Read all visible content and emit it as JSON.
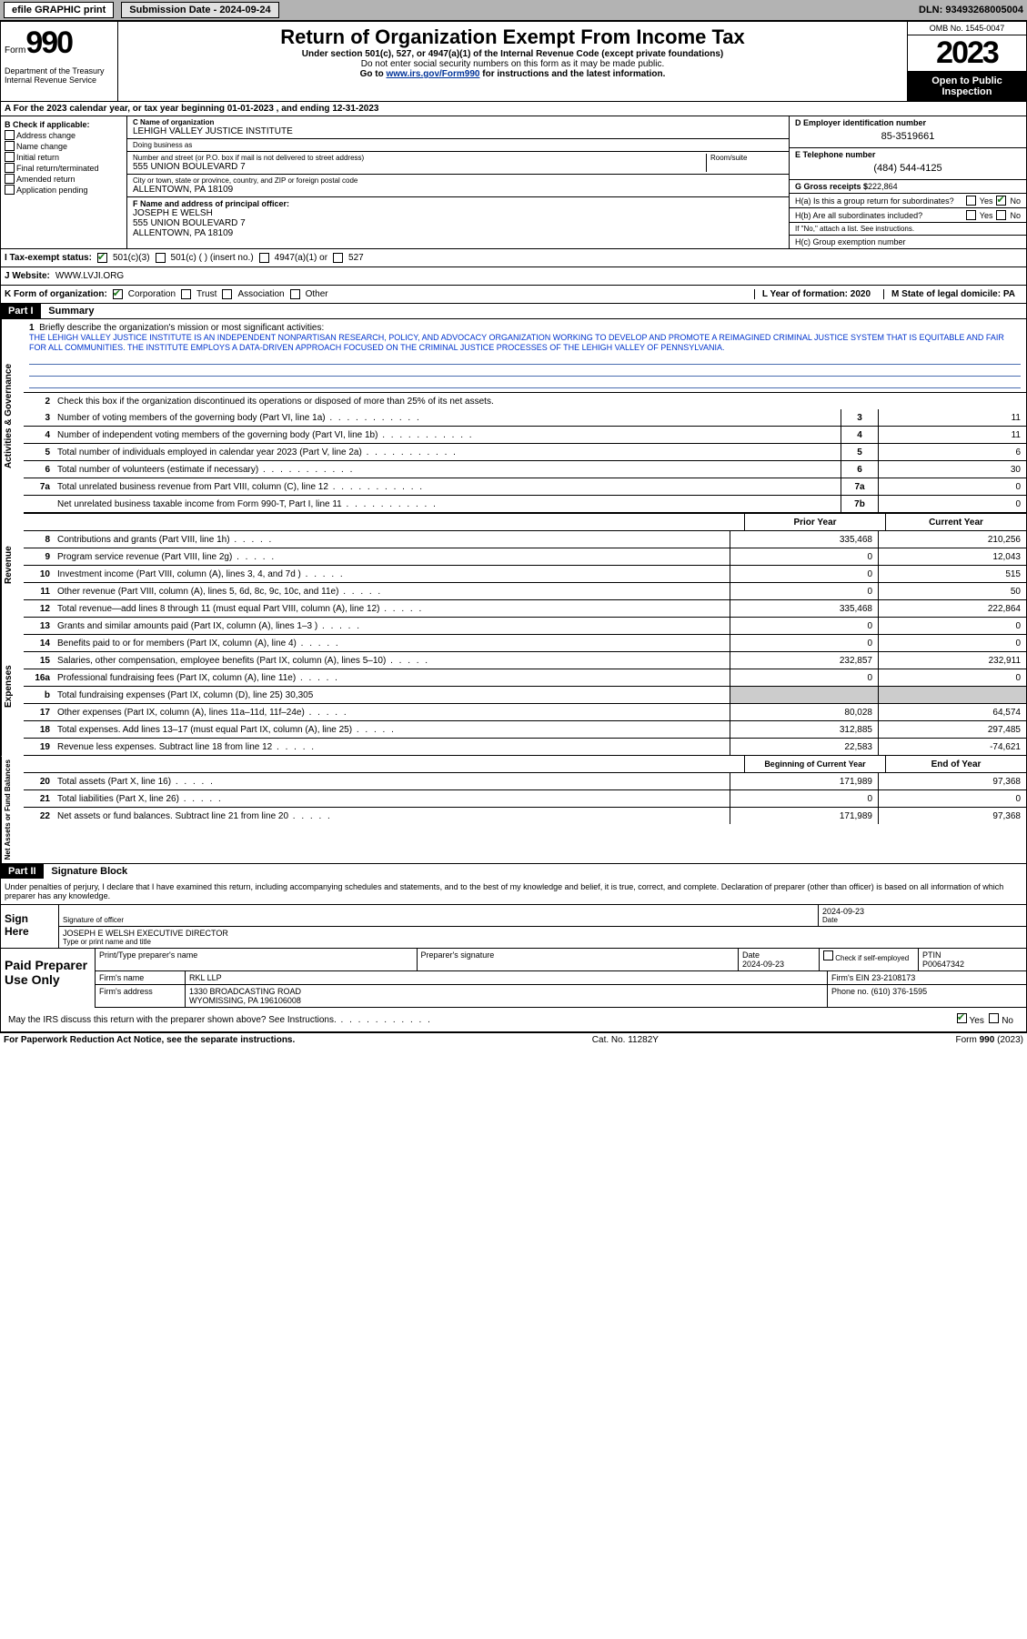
{
  "top_bar": {
    "efile": "efile GRAPHIC print",
    "submission_label": "Submission Date - 2024-09-24",
    "dln_label": "DLN: 93493268005004"
  },
  "header": {
    "form_label": "Form",
    "form_number": "990",
    "main_title": "Return of Organization Exempt From Income Tax",
    "sub1": "Under section 501(c), 527, or 4947(a)(1) of the Internal Revenue Code (except private foundations)",
    "sub2": "Do not enter social security numbers on this form as it may be made public.",
    "sub3_pre": "Go to ",
    "sub3_link": "www.irs.gov/Form990",
    "sub3_post": " for instructions and the latest information.",
    "treasury": "Department of the Treasury\nInternal Revenue Service",
    "omb": "OMB No. 1545-0047",
    "year": "2023",
    "inspection": "Open to Public Inspection"
  },
  "row_a": "A For the 2023 calendar year, or tax year beginning 01-01-2023   , and ending 12-31-2023",
  "section_b": {
    "title": "B Check if applicable:",
    "opts": [
      "Address change",
      "Name change",
      "Initial return",
      "Final return/terminated",
      "Amended return",
      "Application pending"
    ]
  },
  "section_c": {
    "name_label": "C Name of organization",
    "org_name": "LEHIGH VALLEY JUSTICE INSTITUTE",
    "dba_label": "Doing business as",
    "dba": "",
    "street_label": "Number and street (or P.O. box if mail is not delivered to street address)",
    "street": "555 UNION BOULEVARD 7",
    "room_label": "Room/suite",
    "room": "",
    "city_label": "City or town, state or province, country, and ZIP or foreign postal code",
    "city": "ALLENTOWN, PA  18109",
    "f_label": "F Name and address of principal officer:",
    "officer_name": "JOSEPH E WELSH",
    "officer_addr1": "555 UNION BOULEVARD 7",
    "officer_addr2": "ALLENTOWN, PA  18109"
  },
  "section_d": {
    "ein_label": "D Employer identification number",
    "ein": "85-3519661",
    "phone_label": "E Telephone number",
    "phone": "(484) 544-4125",
    "gross_label": "G Gross receipts $",
    "gross": "222,864",
    "ha_label": "H(a)  Is this a group return for subordinates?",
    "hb_label": "H(b)  Are all subordinates included?",
    "hb_note": "If \"No,\" attach a list. See instructions.",
    "hc_label": "H(c)  Group exemption number",
    "yes": "Yes",
    "no": "No"
  },
  "tax_status": {
    "label": "I   Tax-exempt status:",
    "opt1": "501(c)(3)",
    "opt2": "501(c) (  ) (insert no.)",
    "opt3": "4947(a)(1) or",
    "opt4": "527"
  },
  "website": {
    "label": "J   Website:",
    "value": "WWW.LVJI.ORG"
  },
  "k_row": {
    "label": "K Form of organization:",
    "opts": [
      "Corporation",
      "Trust",
      "Association",
      "Other"
    ],
    "l_label": "L Year of formation: 2020",
    "m_label": "M State of legal domicile: PA"
  },
  "part1": {
    "header": "Part I",
    "title": "Summary",
    "vert_gov": "Activities & Governance",
    "vert_rev": "Revenue",
    "vert_exp": "Expenses",
    "vert_net": "Net Assets or Fund Balances",
    "q1": "Briefly describe the organization's mission or most significant activities:",
    "mission": "THE LEHIGH VALLEY JUSTICE INSTITUTE IS AN INDEPENDENT NONPARTISAN RESEARCH, POLICY, AND ADVOCACY ORGANIZATION WORKING TO DEVELOP AND PROMOTE A REIMAGINED CRIMINAL JUSTICE SYSTEM THAT IS EQUITABLE AND FAIR FOR ALL COMMUNITIES. THE INSTITUTE EMPLOYS A DATA-DRIVEN APPROACH FOCUSED ON THE CRIMINAL JUSTICE PROCESSES OF THE LEHIGH VALLEY OF PENNSYLVANIA.",
    "q2": "Check this box         if the organization discontinued its operations or disposed of more than 25% of its net assets.",
    "rows_gov": [
      {
        "n": "3",
        "desc": "Number of voting members of the governing body (Part VI, line 1a)",
        "box": "3",
        "val": "11"
      },
      {
        "n": "4",
        "desc": "Number of independent voting members of the governing body (Part VI, line 1b)",
        "box": "4",
        "val": "11"
      },
      {
        "n": "5",
        "desc": "Total number of individuals employed in calendar year 2023 (Part V, line 2a)",
        "box": "5",
        "val": "6"
      },
      {
        "n": "6",
        "desc": "Total number of volunteers (estimate if necessary)",
        "box": "6",
        "val": "30"
      },
      {
        "n": "7a",
        "desc": "Total unrelated business revenue from Part VIII, column (C), line 12",
        "box": "7a",
        "val": "0"
      },
      {
        "n": "",
        "desc": "Net unrelated business taxable income from Form 990-T, Part I, line 11",
        "box": "7b",
        "val": "0"
      }
    ],
    "header_prior": "Prior Year",
    "header_current": "Current Year",
    "rows_rev": [
      {
        "n": "8",
        "desc": "Contributions and grants (Part VIII, line 1h)",
        "prior": "335,468",
        "cur": "210,256"
      },
      {
        "n": "9",
        "desc": "Program service revenue (Part VIII, line 2g)",
        "prior": "0",
        "cur": "12,043"
      },
      {
        "n": "10",
        "desc": "Investment income (Part VIII, column (A), lines 3, 4, and 7d )",
        "prior": "0",
        "cur": "515"
      },
      {
        "n": "11",
        "desc": "Other revenue (Part VIII, column (A), lines 5, 6d, 8c, 9c, 10c, and 11e)",
        "prior": "0",
        "cur": "50"
      },
      {
        "n": "12",
        "desc": "Total revenue—add lines 8 through 11 (must equal Part VIII, column (A), line 12)",
        "prior": "335,468",
        "cur": "222,864"
      }
    ],
    "rows_exp": [
      {
        "n": "13",
        "desc": "Grants and similar amounts paid (Part IX, column (A), lines 1–3 )",
        "prior": "0",
        "cur": "0"
      },
      {
        "n": "14",
        "desc": "Benefits paid to or for members (Part IX, column (A), line 4)",
        "prior": "0",
        "cur": "0"
      },
      {
        "n": "15",
        "desc": "Salaries, other compensation, employee benefits (Part IX, column (A), lines 5–10)",
        "prior": "232,857",
        "cur": "232,911"
      },
      {
        "n": "16a",
        "desc": "Professional fundraising fees (Part IX, column (A), line 11e)",
        "prior": "0",
        "cur": "0"
      },
      {
        "n": "b",
        "desc": "Total fundraising expenses (Part IX, column (D), line 25) 30,305",
        "grey": true
      },
      {
        "n": "17",
        "desc": "Other expenses (Part IX, column (A), lines 11a–11d, 11f–24e)",
        "prior": "80,028",
        "cur": "64,574"
      },
      {
        "n": "18",
        "desc": "Total expenses. Add lines 13–17 (must equal Part IX, column (A), line 25)",
        "prior": "312,885",
        "cur": "297,485"
      },
      {
        "n": "19",
        "desc": "Revenue less expenses. Subtract line 18 from line 12",
        "prior": "22,583",
        "cur": "-74,621"
      }
    ],
    "header_begin": "Beginning of Current Year",
    "header_end": "End of Year",
    "rows_net": [
      {
        "n": "20",
        "desc": "Total assets (Part X, line 16)",
        "prior": "171,989",
        "cur": "97,368"
      },
      {
        "n": "21",
        "desc": "Total liabilities (Part X, line 26)",
        "prior": "0",
        "cur": "0"
      },
      {
        "n": "22",
        "desc": "Net assets or fund balances. Subtract line 21 from line 20",
        "prior": "171,989",
        "cur": "97,368"
      }
    ]
  },
  "part2": {
    "header": "Part II",
    "title": "Signature Block",
    "perjury": "Under penalties of perjury, I declare that I have examined this return, including accompanying schedules and statements, and to the best of my knowledge and belief, it is true, correct, and complete. Declaration of preparer (other than officer) is based on all information of which preparer has any knowledge.",
    "sign_here": "Sign Here",
    "sig_label": "Signature of officer",
    "sig_date": "2024-09-23",
    "sig_date_label": "Date",
    "officer": "JOSEPH E WELSH EXECUTIVE DIRECTOR",
    "type_label": "Type or print name and title",
    "paid_prep": "Paid Preparer Use Only",
    "prep_name_label": "Print/Type preparer's name",
    "prep_sig_label": "Preparer's signature",
    "prep_date_label": "Date",
    "prep_date": "2024-09-23",
    "self_emp": "Check         if self-employed",
    "ptin_label": "PTIN",
    "ptin": "P00647342",
    "firm_name_label": "Firm's name",
    "firm_name": "RKL LLP",
    "firm_ein_label": "Firm's EIN",
    "firm_ein": "23-2108173",
    "firm_addr_label": "Firm's address",
    "firm_addr1": "1330 BROADCASTING ROAD",
    "firm_addr2": "WYOMISSING, PA  196106008",
    "firm_phone_label": "Phone no.",
    "firm_phone": "(610) 376-1595",
    "discuss": "May the IRS discuss this return with the preparer shown above? See Instructions."
  },
  "footer": {
    "paperwork": "For Paperwork Reduction Act Notice, see the separate instructions.",
    "cat": "Cat. No. 11282Y",
    "form": "Form 990 (2023)"
  }
}
